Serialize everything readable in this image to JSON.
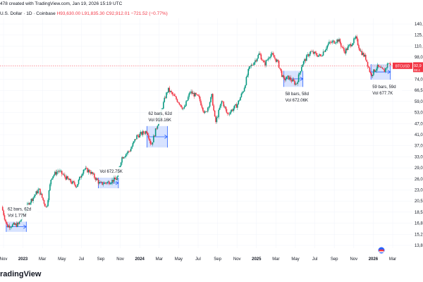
{
  "header": {
    "created_line": "478 created with TradingView.com, Jan 19, 2026 15:19 UTC",
    "symbol_line": "U.S. Dollar · 1D · Coinbase",
    "ohlc": "H93,630.00 L91,835.30 C92,912.01 −721.52 (−0.77%)"
  },
  "price_tag": {
    "symbol": "BTCUSD",
    "value": "92,9",
    "countdown": "08:4"
  },
  "logo": "radingView",
  "colors": {
    "up": "#089981",
    "down": "#f23645",
    "range_fill": "#2962ff",
    "range_line": "#2962ff"
  },
  "chart_data": {
    "type": "candlestick",
    "y_axis_labels": [
      "140,",
      "125,",
      "110,",
      "98,0",
      "86,0",
      "74,0",
      "66,5",
      "59,0",
      "53,0",
      "47,0",
      "41,0",
      "37,0",
      "33,0",
      "29,0",
      "26,0",
      "23,0",
      "20,5",
      "18,5",
      "16,8",
      "15,2",
      "13,8"
    ],
    "x_axis_labels": [
      "Nov",
      "2023",
      "Mar",
      "May",
      "Jul",
      "Sep",
      "Nov",
      "2024",
      "Mar",
      "May",
      "Jul",
      "Sep",
      "Nov",
      "2025",
      "Mar",
      "May",
      "Jul",
      "Sep",
      "Nov",
      "2026",
      "Mar"
    ],
    "x_axis_bold": [
      "2023",
      "2024",
      "2025",
      "2026"
    ],
    "path": [
      [
        "2022-10-25",
        20300
      ],
      [
        "2022-11-10",
        16500
      ],
      [
        "2022-12-15",
        16800
      ],
      [
        "2023-01-15",
        21000
      ],
      [
        "2023-02-15",
        24500
      ],
      [
        "2023-03-10",
        20000
      ],
      [
        "2023-03-25",
        28000
      ],
      [
        "2023-04-15",
        30000
      ],
      [
        "2023-05-20",
        26800
      ],
      [
        "2023-06-10",
        25500
      ],
      [
        "2023-07-01",
        30500
      ],
      [
        "2023-07-20",
        29800
      ],
      [
        "2023-08-20",
        26000
      ],
      [
        "2023-09-15",
        26500
      ],
      [
        "2023-10-10",
        27500
      ],
      [
        "2023-10-25",
        34500
      ],
      [
        "2023-11-20",
        37500
      ],
      [
        "2023-12-10",
        43500
      ],
      [
        "2024-01-10",
        46000
      ],
      [
        "2024-01-23",
        39500
      ],
      [
        "2024-02-15",
        52000
      ],
      [
        "2024-03-05",
        66000
      ],
      [
        "2024-03-14",
        72000
      ],
      [
        "2024-04-15",
        63000
      ],
      [
        "2024-05-01",
        58000
      ],
      [
        "2024-05-20",
        70000
      ],
      [
        "2024-06-15",
        66000
      ],
      [
        "2024-07-05",
        55000
      ],
      [
        "2024-07-25",
        67000
      ],
      [
        "2024-08-05",
        50000
      ],
      [
        "2024-08-25",
        64000
      ],
      [
        "2024-09-10",
        55000
      ],
      [
        "2024-10-10",
        61000
      ],
      [
        "2024-10-30",
        72000
      ],
      [
        "2024-11-15",
        90000
      ],
      [
        "2024-12-05",
        99000
      ],
      [
        "2024-12-17",
        106000
      ],
      [
        "2025-01-01",
        94000
      ],
      [
        "2025-01-20",
        106000
      ],
      [
        "2025-02-10",
        97000
      ],
      [
        "2025-02-28",
        80000
      ],
      [
        "2025-03-15",
        82000
      ],
      [
        "2025-04-08",
        76000
      ],
      [
        "2025-04-25",
        94000
      ],
      [
        "2025-05-20",
        108000
      ],
      [
        "2025-06-20",
        103000
      ],
      [
        "2025-07-15",
        118000
      ],
      [
        "2025-08-14",
        123000
      ],
      [
        "2025-09-01",
        108000
      ],
      [
        "2025-10-06",
        125000
      ],
      [
        "2025-10-20",
        109000
      ],
      [
        "2025-11-05",
        101000
      ],
      [
        "2025-11-21",
        84000
      ],
      [
        "2025-12-10",
        92000
      ],
      [
        "2025-12-31",
        87500
      ],
      [
        "2026-01-14",
        97000
      ],
      [
        "2026-01-19",
        92912
      ]
    ],
    "last_close": 92912.01,
    "range_boxes": [
      {
        "start": "2022-11-08",
        "end": "2023-01-08",
        "low": 15500,
        "high": 17300,
        "bars_label": "62 bars, 62d",
        "vol_label": "Vol 1.77M"
      },
      {
        "start": "2023-08-15",
        "end": "2023-10-15",
        "low": 24800,
        "high": 27800,
        "bars_label": "",
        "vol_label": "Vol 672.75K"
      },
      {
        "start": "2024-01-10",
        "end": "2024-03-12",
        "low": 38500,
        "high": 48500,
        "bars_label": "62 bars, 62d",
        "vol_label": "Vol 918.16K"
      },
      {
        "start": "2025-03-01",
        "end": "2025-04-28",
        "low": 74000,
        "high": 88000,
        "bars_label": "58 bars, 58d",
        "vol_label": "Vol 672.06K"
      },
      {
        "start": "2025-11-21",
        "end": "2026-01-19",
        "low": 80000,
        "high": 94500,
        "bars_label": "59 bars, 59d",
        "vol_label": "Vol 677.7K"
      }
    ]
  }
}
